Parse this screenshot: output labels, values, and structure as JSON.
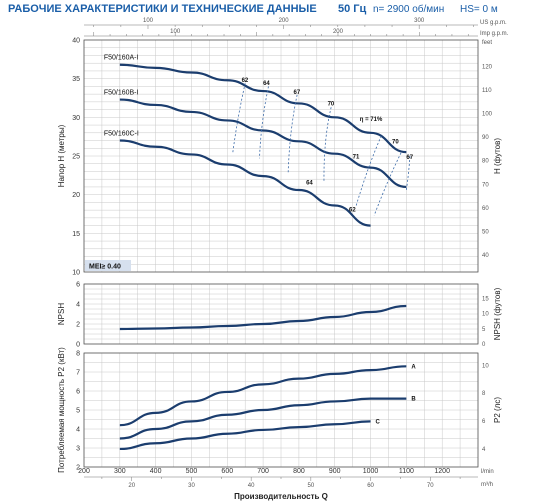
{
  "header": {
    "title": "РАБОЧИЕ ХАРАКТЕРИСТИКИ И ТЕХНИЧЕСКИЕ ДАННЫЕ",
    "frequency": "50 Гц",
    "speed": "n= 2900 об/мин",
    "hs": "HS= 0 м"
  },
  "chart_data": [
    {
      "id": "head",
      "type": "line",
      "ylabel": "Напор H (метры)",
      "y2label": "H (футов)",
      "ylim": [
        10,
        40
      ],
      "yticks": [
        10,
        15,
        20,
        25,
        30,
        35,
        40
      ],
      "y2lim": [
        32.8,
        131.2
      ],
      "y2ticks": [
        40,
        50,
        60,
        70,
        80,
        90,
        100,
        110,
        120
      ],
      "y2unit": "feet",
      "xlim": [
        200,
        1300
      ],
      "top_axis_us": {
        "unit": "US g.p.m.",
        "lim": [
          52.8,
          343.4
        ],
        "ticks": [
          100,
          200,
          300
        ]
      },
      "top_axis_imp": {
        "unit": "Imp g.p.m.",
        "lim": [
          44.0,
          286.0
        ],
        "ticks": [
          100,
          200
        ]
      },
      "badge": "MEI≥ 0.40",
      "series": [
        {
          "name": "F50/160A-I",
          "x": [
            300,
            400,
            500,
            600,
            700,
            800,
            900,
            1000,
            1100
          ],
          "y": [
            36.8,
            36.4,
            35.8,
            34.8,
            33.4,
            31.8,
            30.0,
            28.0,
            25.5
          ]
        },
        {
          "name": "F50/160B-I",
          "x": [
            300,
            400,
            500,
            600,
            700,
            800,
            900,
            1000,
            1100
          ],
          "y": [
            32.3,
            31.6,
            30.7,
            29.6,
            28.3,
            26.9,
            25.3,
            23.5,
            21.0
          ]
        },
        {
          "name": "F50/160C-I",
          "x": [
            300,
            400,
            500,
            600,
            700,
            800,
            900,
            1000
          ],
          "y": [
            27.0,
            26.2,
            25.2,
            23.9,
            22.4,
            20.6,
            18.6,
            16.0
          ]
        }
      ],
      "efficiency_labels": [
        {
          "text": "62",
          "x": 640,
          "y": 34.6
        },
        {
          "text": "64",
          "x": 700,
          "y": 34.2
        },
        {
          "text": "67",
          "x": 785,
          "y": 33.0
        },
        {
          "text": "70",
          "x": 880,
          "y": 31.5
        },
        {
          "text": "η = 71%",
          "x": 970,
          "y": 29.5
        },
        {
          "text": "70",
          "x": 1060,
          "y": 26.6
        },
        {
          "text": "67",
          "x": 1100,
          "y": 24.6
        },
        {
          "text": "71",
          "x": 950,
          "y": 24.7
        },
        {
          "text": "64",
          "x": 820,
          "y": 21.3
        },
        {
          "text": "62",
          "x": 940,
          "y": 17.8
        }
      ],
      "efficiency_iso": [
        [
          [
            650,
            34.4
          ],
          [
            640,
            30.1
          ],
          [
            615,
            25.3
          ]
        ],
        [
          [
            715,
            34.0
          ],
          [
            705,
            29.3
          ],
          [
            690,
            24.7
          ]
        ],
        [
          [
            795,
            32.9
          ],
          [
            785,
            28.3
          ],
          [
            770,
            22.8
          ]
        ],
        [
          [
            890,
            31.3
          ],
          [
            880,
            27.2
          ],
          [
            870,
            21.6
          ]
        ],
        [
          [
            1030,
            27.6
          ],
          [
            1005,
            23.8
          ],
          [
            960,
            18.6
          ]
        ],
        [
          [
            1085,
            25.4
          ],
          [
            1060,
            22.0
          ],
          [
            1010,
            17.3
          ]
        ],
        [
          [
            1110,
            25.0
          ],
          [
            1118,
            22.8
          ],
          [
            1100,
            20.6
          ]
        ]
      ]
    },
    {
      "id": "npsh",
      "type": "line",
      "ylabel": "NPSH",
      "y2label": "NPSH (футов)",
      "ylim": [
        0,
        6
      ],
      "yticks": [
        0,
        2,
        4,
        6
      ],
      "y2lim": [
        0,
        19.7
      ],
      "y2ticks": [
        0,
        5,
        10,
        15
      ],
      "xlim": [
        200,
        1300
      ],
      "series": [
        {
          "name": "",
          "x": [
            300,
            400,
            500,
            600,
            700,
            800,
            900,
            1000,
            1100
          ],
          "y": [
            1.5,
            1.55,
            1.65,
            1.8,
            2.0,
            2.3,
            2.7,
            3.2,
            3.8
          ]
        }
      ]
    },
    {
      "id": "power",
      "type": "line",
      "ylabel": "Потребляемая мощность P2 (кВт)",
      "y2label": "P2 (лс)",
      "ylim": [
        2,
        8
      ],
      "yticks": [
        2,
        3,
        4,
        5,
        6,
        7,
        8
      ],
      "y2lim": [
        2.72,
        10.88
      ],
      "y2ticks": [
        4,
        6,
        8,
        10
      ],
      "xlim": [
        200,
        1300
      ],
      "xticks": [
        200,
        300,
        400,
        500,
        600,
        700,
        800,
        900,
        1000,
        1100,
        1200
      ],
      "xunit": "l/min",
      "bottom_axis_m3h": {
        "unit": "m³/h",
        "lim": [
          12,
          78
        ],
        "ticks": [
          20,
          30,
          40,
          50,
          60,
          70
        ]
      },
      "xlabel": "Производительность Q",
      "series": [
        {
          "name": "A",
          "x": [
            300,
            400,
            500,
            600,
            700,
            800,
            900,
            1000,
            1100
          ],
          "y": [
            4.2,
            4.85,
            5.45,
            5.95,
            6.35,
            6.65,
            6.9,
            7.1,
            7.3
          ]
        },
        {
          "name": "B",
          "x": [
            300,
            400,
            500,
            600,
            700,
            800,
            900,
            1000,
            1100
          ],
          "y": [
            3.5,
            4.0,
            4.4,
            4.75,
            5.0,
            5.25,
            5.45,
            5.6,
            5.6
          ]
        },
        {
          "name": "C",
          "x": [
            300,
            400,
            500,
            600,
            700,
            800,
            900,
            1000
          ],
          "y": [
            2.95,
            3.25,
            3.5,
            3.75,
            3.95,
            4.1,
            4.25,
            4.4
          ]
        }
      ]
    }
  ]
}
